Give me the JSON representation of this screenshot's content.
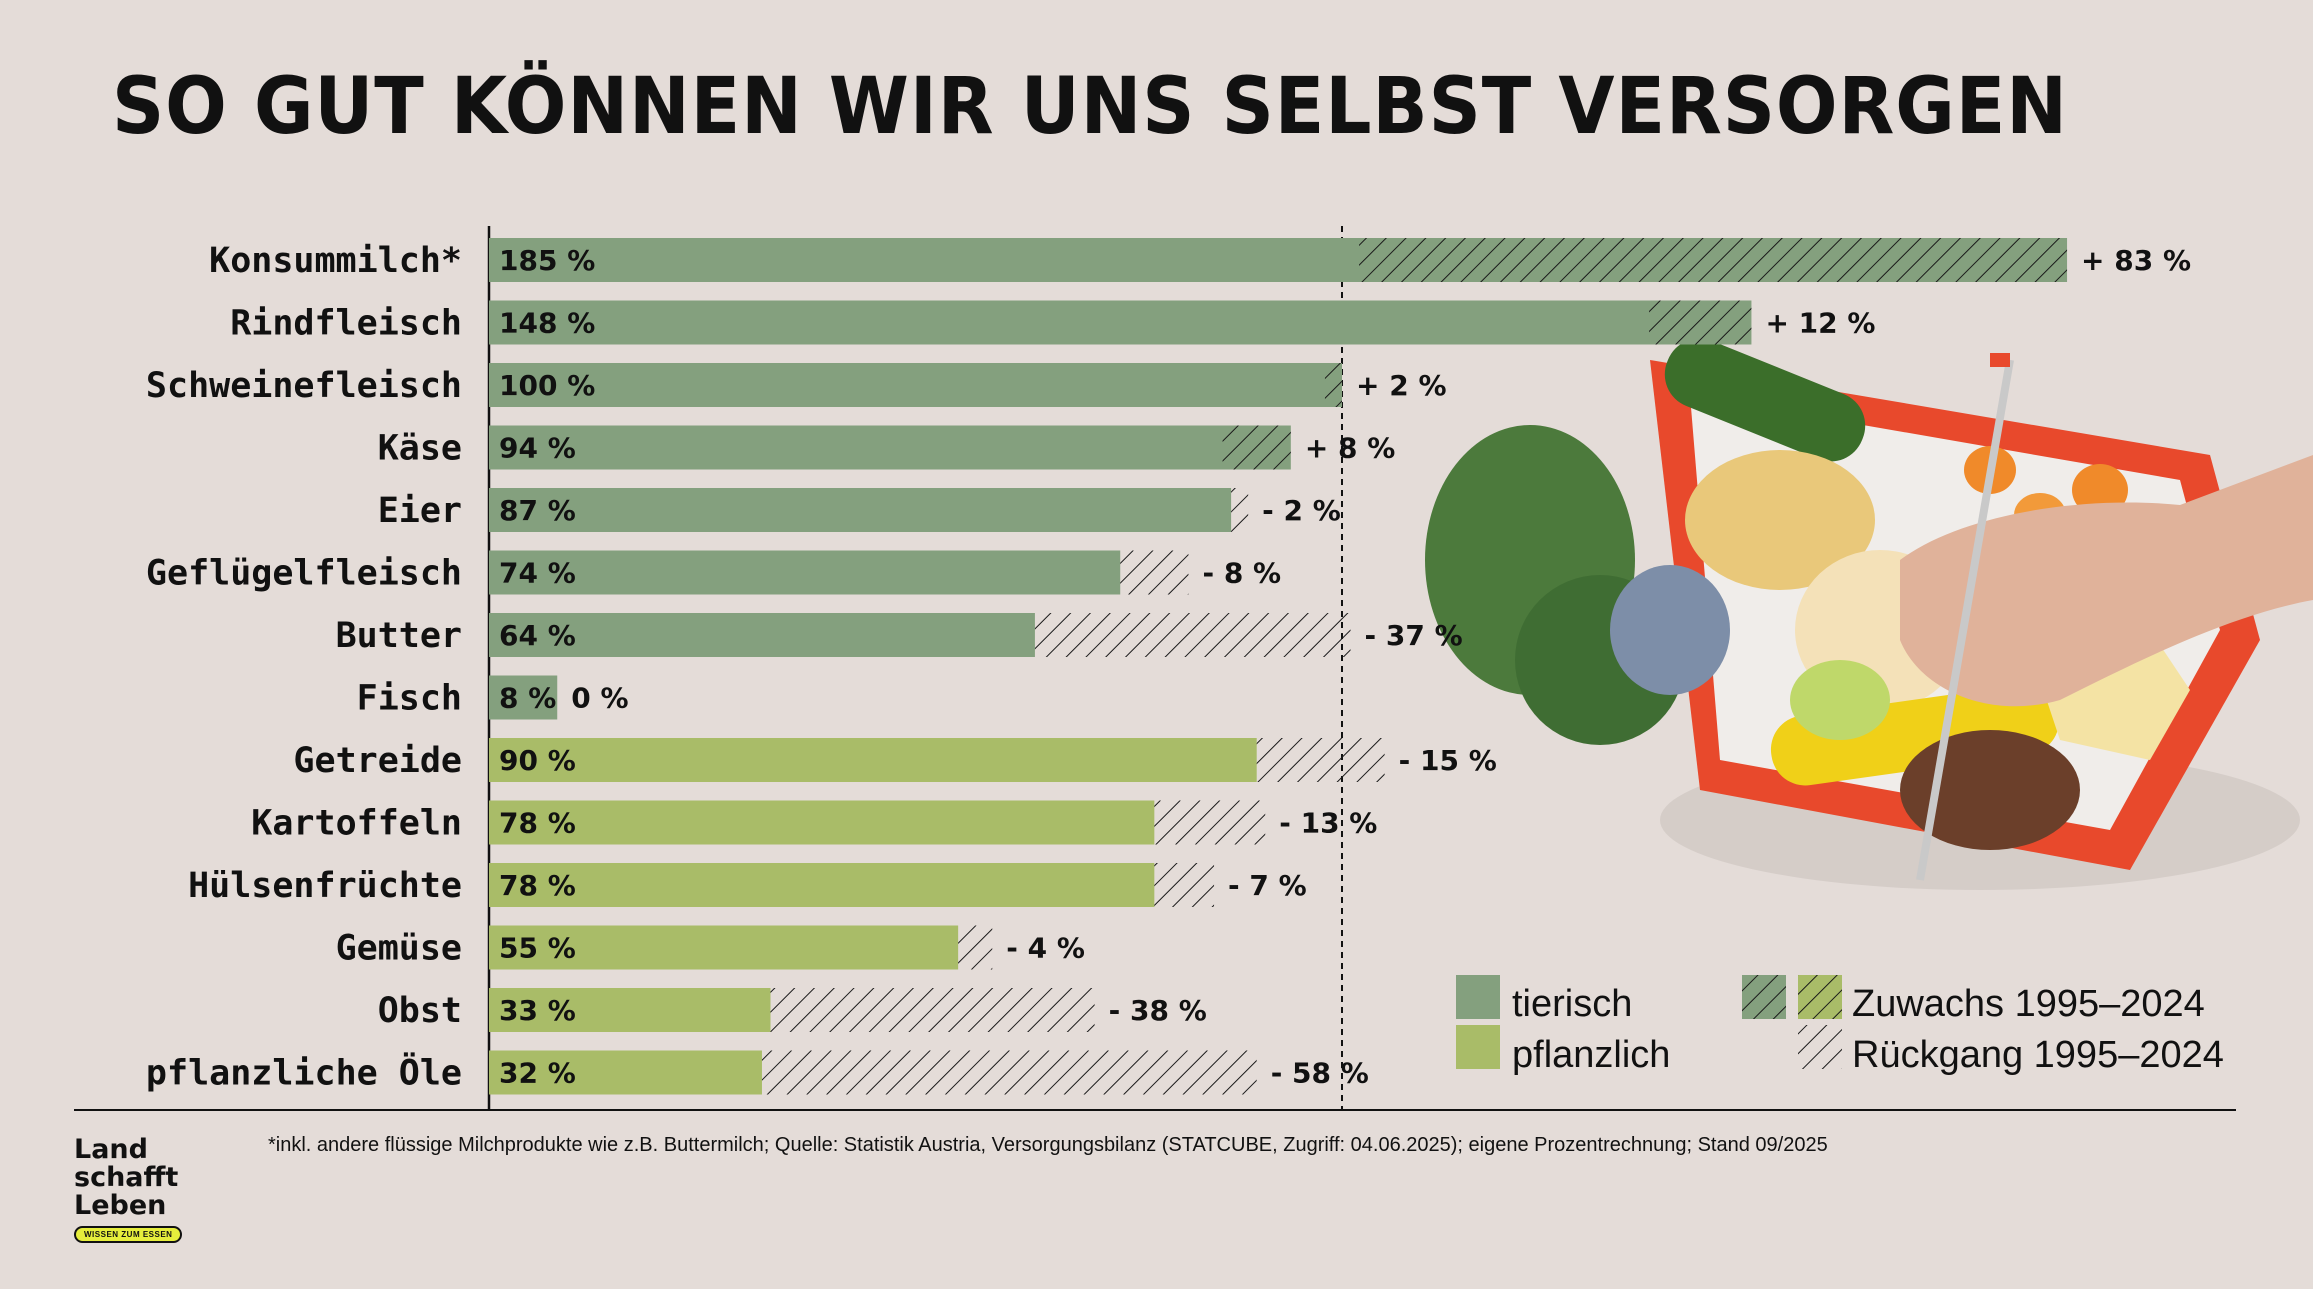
{
  "title": "SO GUT KÖNNEN WIR UNS SELBST VERSORGEN",
  "footnote": "*inkl. andere flüssige Milchprodukte wie z.B. Buttermilch; Quelle: Statistik Austria, Versorgungsbilanz (STATCUBE, Zugriff: 04.06.2025); eigene Prozentrechnung; Stand 09/2025",
  "logo": {
    "line1": "Land",
    "line2": "schafft",
    "line3": "Leben",
    "tagline": "WISSEN ZUM ESSEN"
  },
  "colors": {
    "background": "#e4dcd8",
    "tierisch": "#84a07e",
    "pflanzlich": "#a9bc68",
    "hatch": "#1a1a1a",
    "text": "#111111"
  },
  "chart_data": {
    "type": "bar",
    "orientation": "horizontal",
    "reference_line": 100,
    "x_range": [
      0,
      185
    ],
    "categories": [
      "Konsummilch*",
      "Rindfleisch",
      "Schweinefleisch",
      "Käse",
      "Eier",
      "Geflügelfleisch",
      "Butter",
      "Fisch",
      "Getreide",
      "Kartoffeln",
      "Hülsenfrüchte",
      "Gemüse",
      "Obst",
      "pflanzliche Öle"
    ],
    "values": [
      185,
      148,
      100,
      94,
      87,
      74,
      64,
      8,
      90,
      78,
      78,
      55,
      33,
      32
    ],
    "value_labels": [
      "185 %",
      "148 %",
      "100 %",
      "94 %",
      "87 %",
      "74 %",
      "64 %",
      "8 %",
      "90 %",
      "78 %",
      "78 %",
      "55 %",
      "33 %",
      "32 %"
    ],
    "changes": [
      83,
      12,
      2,
      8,
      -2,
      -8,
      -37,
      0,
      -15,
      -13,
      -7,
      -4,
      -38,
      -58
    ],
    "change_labels": [
      "+ 83 %",
      "+ 12 %",
      "+ 2 %",
      "+ 8 %",
      "- 2 %",
      "- 8 %",
      "- 37 %",
      "0 %",
      "- 15 %",
      "- 13 %",
      "- 7 %",
      "- 4 %",
      "- 38 %",
      "- 58 %"
    ],
    "groups": [
      "tierisch",
      "tierisch",
      "tierisch",
      "tierisch",
      "tierisch",
      "tierisch",
      "tierisch",
      "tierisch",
      "pflanzlich",
      "pflanzlich",
      "pflanzlich",
      "pflanzlich",
      "pflanzlich",
      "pflanzlich"
    ],
    "legend": {
      "tierisch": "tierisch",
      "pflanzlich": "pflanzlich",
      "zuwachs": "Zuwachs 1995–2024",
      "rueckgang": "Rückgang 1995–2024"
    }
  }
}
